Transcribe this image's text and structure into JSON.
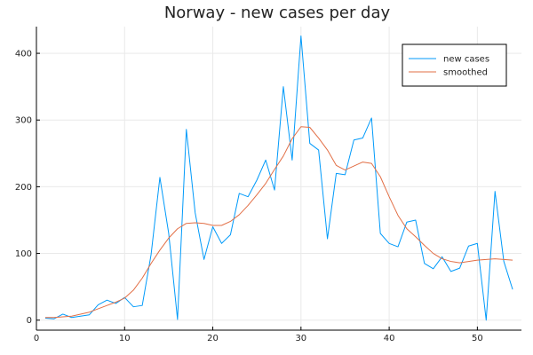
{
  "chart_data": {
    "type": "line",
    "title": "Norway - new cases per day",
    "xlabel": "",
    "ylabel": "",
    "xlim": [
      0,
      55
    ],
    "ylim": [
      -15,
      440
    ],
    "xticks": [
      0,
      10,
      20,
      30,
      40,
      50
    ],
    "yticks": [
      0,
      100,
      200,
      300,
      400
    ],
    "grid": true,
    "legend_position": "top-right",
    "series": [
      {
        "name": "new cases",
        "color": "#009AFA",
        "x": [
          1,
          2,
          3,
          4,
          5,
          6,
          7,
          8,
          9,
          10,
          11,
          12,
          13,
          14,
          15,
          16,
          17,
          18,
          19,
          20,
          21,
          22,
          23,
          24,
          25,
          26,
          27,
          28,
          29,
          30,
          31,
          32,
          33,
          34,
          35,
          36,
          37,
          38,
          39,
          40,
          41,
          42,
          43,
          44,
          45,
          46,
          47,
          48,
          49,
          50,
          51,
          52,
          53,
          54
        ],
        "values": [
          3,
          2,
          9,
          4,
          6,
          8,
          23,
          30,
          25,
          34,
          20,
          22,
          98,
          214,
          130,
          1,
          286,
          161,
          91,
          140,
          115,
          128,
          190,
          185,
          210,
          240,
          195,
          350,
          240,
          426,
          265,
          255,
          122,
          220,
          218,
          270,
          273,
          303,
          130,
          115,
          110,
          147,
          150,
          85,
          77,
          95,
          73,
          78,
          111,
          115,
          0,
          193,
          88,
          46
        ]
      },
      {
        "name": "smoothed",
        "color": "#E26F46",
        "x": [
          1,
          2,
          3,
          4,
          5,
          6,
          7,
          8,
          9,
          10,
          11,
          12,
          13,
          14,
          15,
          16,
          17,
          18,
          19,
          20,
          21,
          22,
          23,
          24,
          25,
          26,
          27,
          28,
          29,
          30,
          31,
          32,
          33,
          34,
          35,
          36,
          37,
          38,
          39,
          40,
          41,
          42,
          43,
          44,
          45,
          46,
          47,
          48,
          49,
          50,
          51,
          52,
          53,
          54
        ],
        "values": [
          4,
          4,
          5,
          6,
          9,
          12,
          17,
          22,
          27,
          33,
          45,
          63,
          85,
          105,
          123,
          137,
          145,
          146,
          145,
          142,
          142,
          148,
          158,
          172,
          188,
          205,
          226,
          246,
          272,
          290,
          289,
          273,
          255,
          232,
          225,
          231,
          237,
          235,
          215,
          185,
          157,
          137,
          125,
          112,
          100,
          92,
          88,
          86,
          88,
          90,
          91,
          92,
          91,
          90
        ]
      }
    ]
  }
}
